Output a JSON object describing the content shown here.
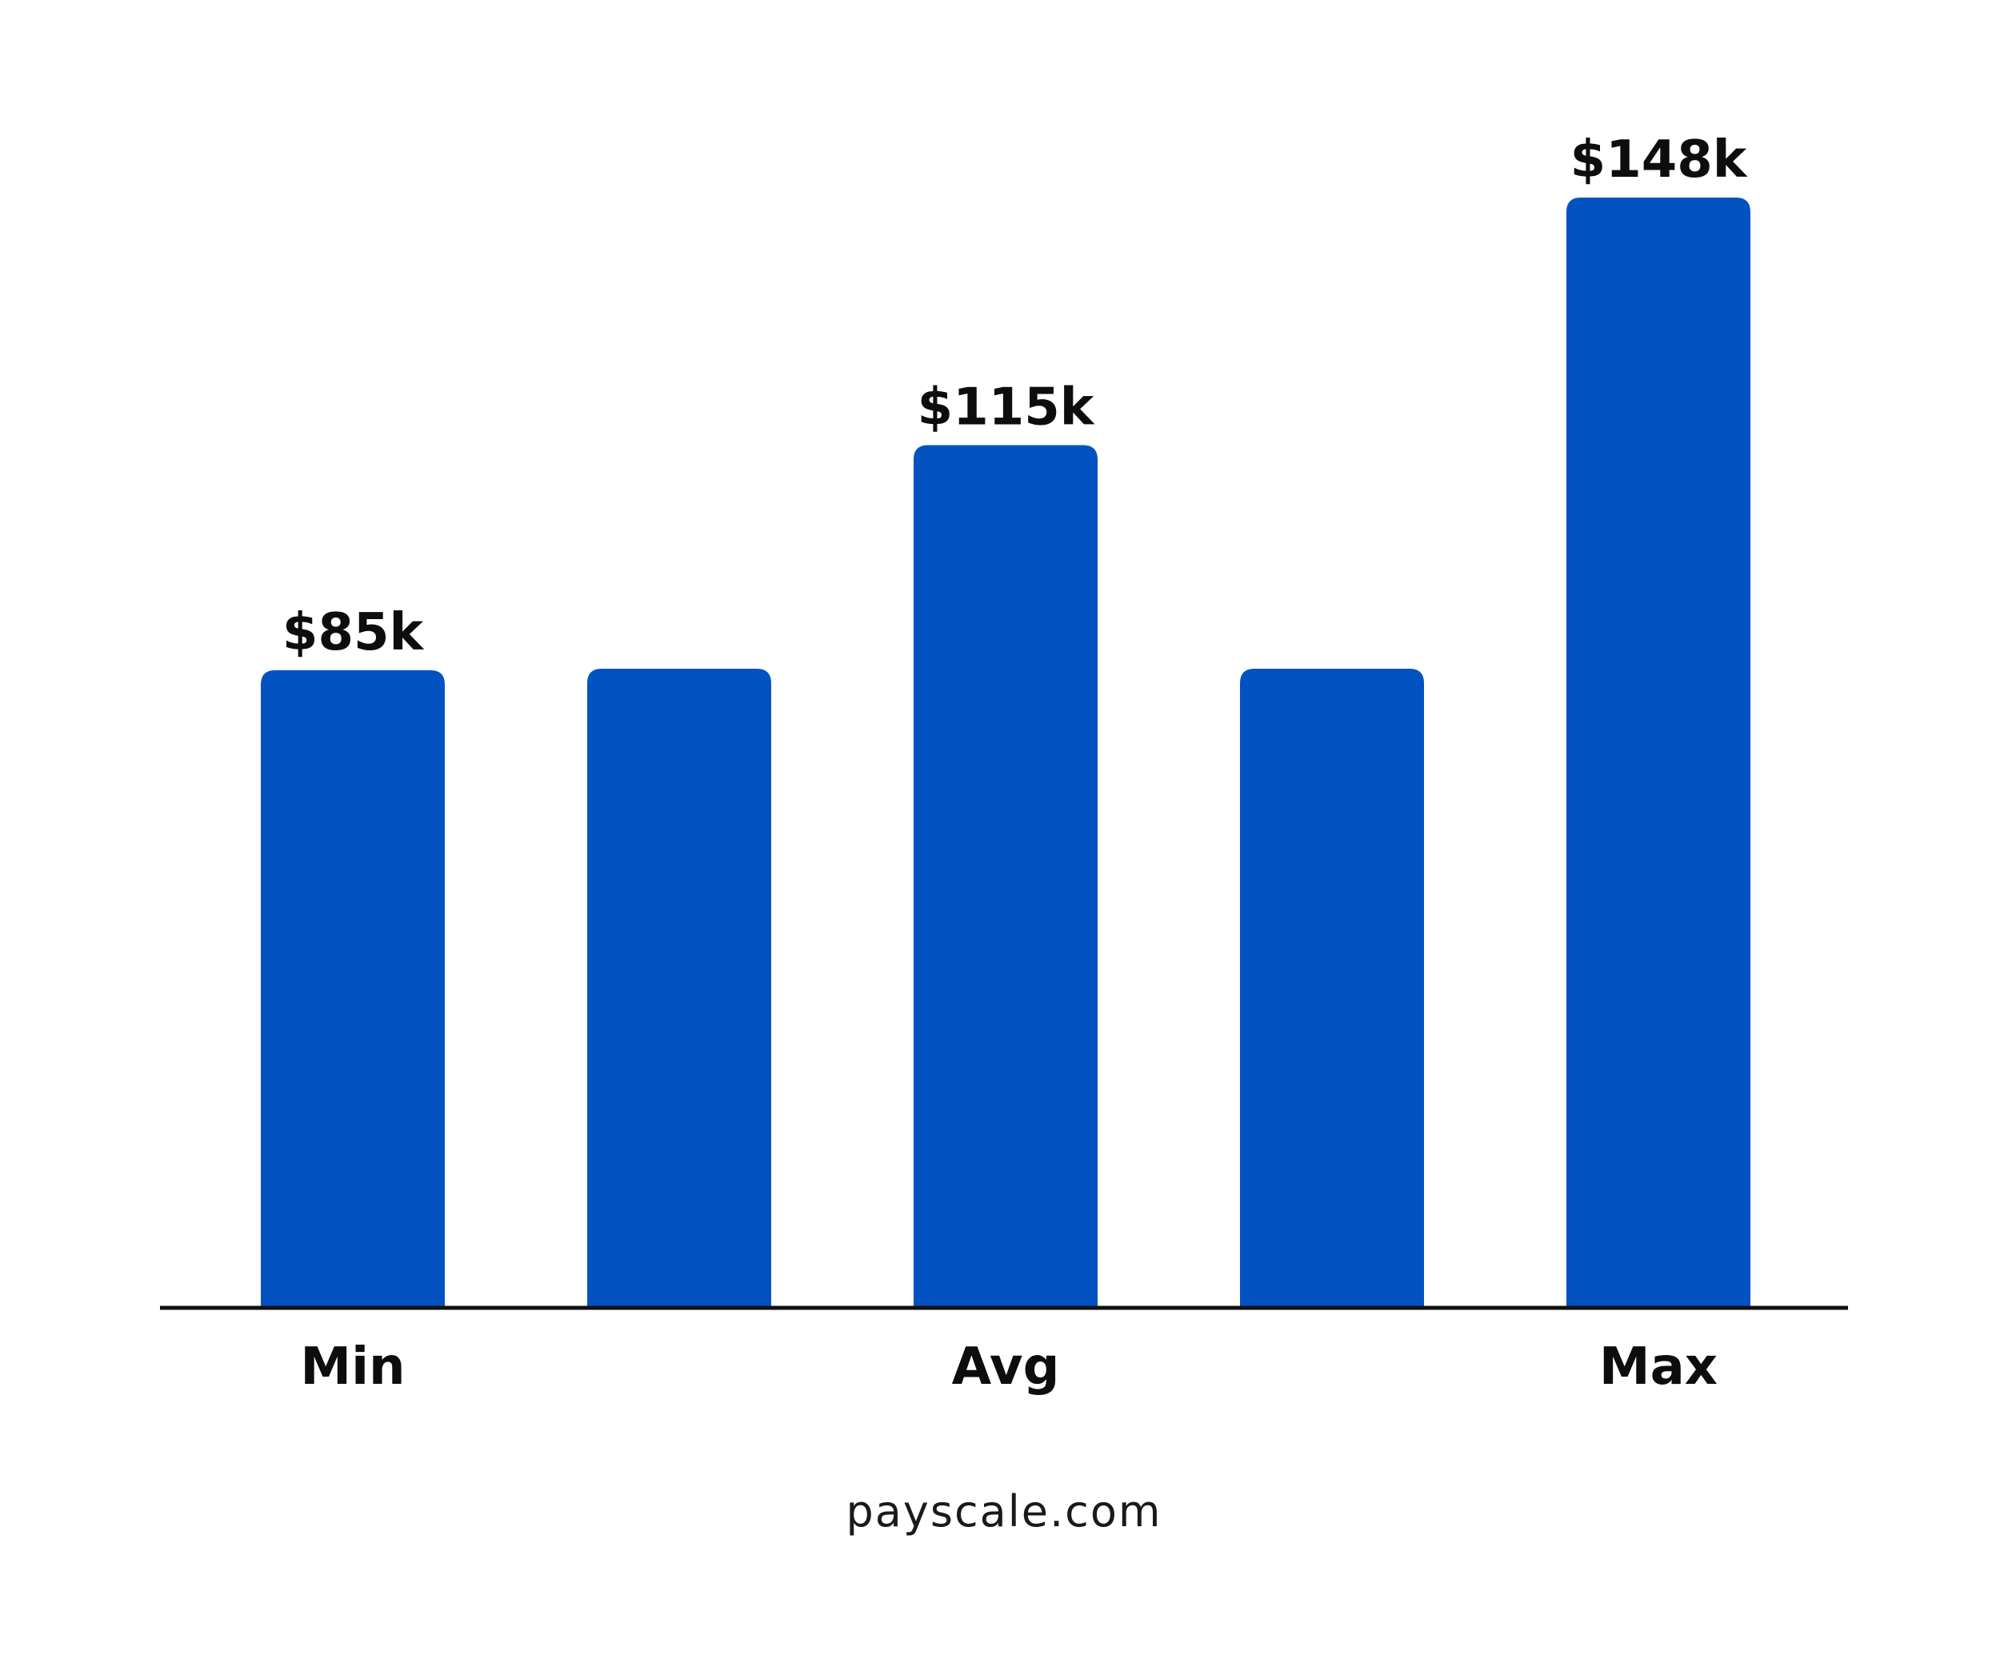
{
  "chart_data": {
    "type": "bar",
    "categories": [
      "Min",
      "",
      "Avg",
      "",
      "Max"
    ],
    "values": [
      85,
      85.2,
      115,
      85.2,
      148
    ],
    "value_labels": [
      "$85k",
      "",
      "$115k",
      "",
      "$148k"
    ],
    "unit": "$k",
    "title": "",
    "xlabel": "",
    "ylabel": "",
    "ylim": [
      0,
      148
    ],
    "grid": false,
    "legend": "none",
    "bar_color": "#0252c2",
    "axis_color": "#111111"
  },
  "footer": {
    "source": "payscale.com"
  }
}
